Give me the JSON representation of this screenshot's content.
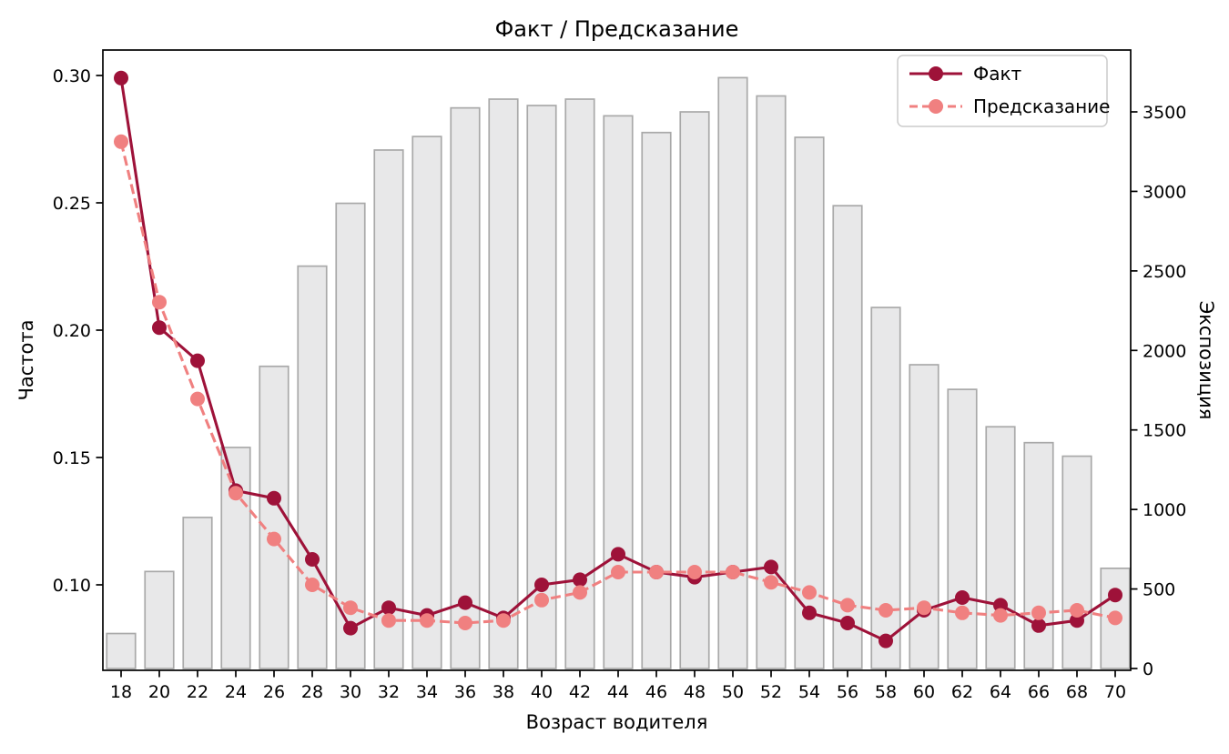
{
  "title": "Факт / Предсказание",
  "legend": {
    "entries": [
      {
        "label": "Факт",
        "style": "solid"
      },
      {
        "label": "Предсказание",
        "style": "dashed"
      }
    ]
  },
  "colors": {
    "fact": "#9E1239",
    "pred": "#F08080",
    "bar_fill": "#E8E8E9",
    "bar_edge": "#A9A9A9",
    "axis": "#000000",
    "legend_border": "#CCCCCC",
    "background": "#FFFFFF"
  },
  "chart_data": {
    "type": "bar+line",
    "title": "Факт / Предсказание",
    "xlabel": "Возраст водителя",
    "ylabel_left": "Частота",
    "ylabel_right": "Экспозиция",
    "categories": [
      18,
      20,
      22,
      24,
      26,
      28,
      30,
      32,
      34,
      36,
      38,
      40,
      42,
      44,
      46,
      48,
      50,
      52,
      54,
      56,
      58,
      60,
      62,
      64,
      66,
      68,
      70
    ],
    "series": [
      {
        "name": "Факт",
        "type": "line",
        "axis": "left",
        "style": "solid",
        "color": "#9E1239",
        "values": [
          0.299,
          0.201,
          0.188,
          0.137,
          0.134,
          0.11,
          0.083,
          0.091,
          0.088,
          0.093,
          0.087,
          0.1,
          0.102,
          0.112,
          0.105,
          0.103,
          0.105,
          0.107,
          0.089,
          0.085,
          0.078,
          0.09,
          0.095,
          0.092,
          0.084,
          0.086,
          0.096
        ]
      },
      {
        "name": "Предсказание",
        "type": "line",
        "axis": "left",
        "style": "dashed",
        "color": "#F08080",
        "values": [
          0.274,
          0.211,
          0.173,
          0.136,
          0.118,
          0.1,
          0.091,
          0.086,
          0.086,
          0.085,
          0.086,
          0.094,
          0.097,
          0.105,
          0.105,
          0.105,
          0.105,
          0.101,
          0.097,
          0.092,
          0.09,
          0.091,
          0.089,
          0.088,
          0.089,
          0.09,
          0.087
        ]
      },
      {
        "name": "Экспозиция",
        "type": "bar",
        "axis": "right",
        "color": "#E8E8E9",
        "values": [
          220,
          610,
          950,
          1390,
          1900,
          2530,
          2925,
          3260,
          3345,
          3525,
          3580,
          3540,
          3580,
          3475,
          3370,
          3500,
          3715,
          3600,
          3340,
          2910,
          2270,
          1910,
          1755,
          1520,
          1420,
          1335,
          630
        ]
      }
    ],
    "yticks_left": [
      0.1,
      0.15,
      0.2,
      0.25,
      0.3
    ],
    "yticks_right": [
      0,
      500,
      1000,
      1500,
      2000,
      2500,
      3000,
      3500
    ],
    "ylim_left": [
      0.0664,
      0.31
    ],
    "ylim_right": [
      0,
      3895
    ],
    "xlim": [
      17.05,
      70.81
    ],
    "bar_width_years": 1.5,
    "grid": false,
    "legend_position": "upper right"
  }
}
